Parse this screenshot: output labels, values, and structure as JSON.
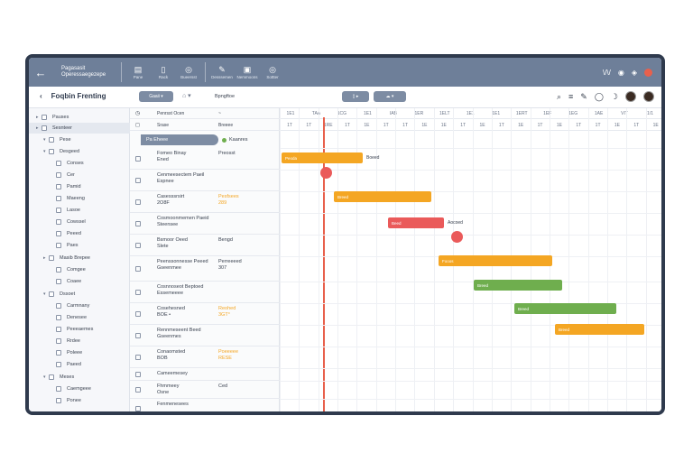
{
  "titlebar": {
    "doc_title": "Pagasasit\nOperessaegezepe",
    "buttons": [
      {
        "icon": "▤",
        "label": "Pane"
      },
      {
        "icon": "▯",
        "label": "Rack"
      },
      {
        "icon": "◎",
        "label": "Bueersst"
      },
      {
        "icon": "✎",
        "label": "Desssemen"
      },
      {
        "icon": "▣",
        "label": "Nemmoons"
      },
      {
        "icon": "◎",
        "label": "Sottter"
      }
    ],
    "right_text": "\\/\\/"
  },
  "toolbar": {
    "page_title": "Foqbin Frenting",
    "view_label": "Gaaii ▾",
    "filter_label": "Bpngftoe"
  },
  "sidebar": {
    "items": [
      {
        "label": "Pauses",
        "level": 0,
        "arrow": "▸"
      },
      {
        "label": "Sesnteer",
        "level": 0,
        "arrow": "▸",
        "selected": true
      },
      {
        "label": "Pese",
        "level": 1,
        "arrow": "▾"
      },
      {
        "label": "Desgeed",
        "level": 1,
        "arrow": "▾"
      },
      {
        "label": "Conses",
        "level": 2
      },
      {
        "label": "Cer",
        "level": 2
      },
      {
        "label": "Pamid",
        "level": 2
      },
      {
        "label": "Maeeng",
        "level": 2
      },
      {
        "label": "Lasoe",
        "level": 2
      },
      {
        "label": "Cowssel",
        "level": 2
      },
      {
        "label": "Peeed",
        "level": 2
      },
      {
        "label": "Paes",
        "level": 2
      },
      {
        "label": "Masib Brepee",
        "level": 1,
        "arrow": "▸"
      },
      {
        "label": "Comgee",
        "level": 2
      },
      {
        "label": "Coaee",
        "level": 2
      },
      {
        "label": "Dssoet",
        "level": 1,
        "arrow": "▾"
      },
      {
        "label": "Carmnany",
        "level": 2
      },
      {
        "label": "Denesee",
        "level": 2
      },
      {
        "label": "Peeeaemes",
        "level": 2
      },
      {
        "label": "Rrdee",
        "level": 2
      },
      {
        "label": "Poleee",
        "level": 2
      },
      {
        "label": "Paeed",
        "level": 2
      },
      {
        "label": "Meses",
        "level": 1,
        "arrow": "▾"
      },
      {
        "label": "Caemgeee",
        "level": 2
      },
      {
        "label": "Ponee",
        "level": 2
      }
    ]
  },
  "grid": {
    "header1": {
      "a": "Penrsst Ocen",
      "b": "~"
    },
    "header2": {
      "a": "Srase",
      "b": "Breeee"
    },
    "group_label": "Pa Eheee",
    "group_badge": "Kaanres",
    "rows": [
      {
        "name": "Fomeo Binay\nEned",
        "value": "Preosst",
        "orange": false
      },
      {
        "name": "Cenmeesectem Paeil\nEspnee",
        "value": "",
        "orange": false
      },
      {
        "name": "Casesssrsirt\n2O8F",
        "value": "Pesfsees\n289",
        "orange": true
      },
      {
        "name": "Cosmoonmemen Paeid\nSteensee",
        "value": "",
        "orange": false
      },
      {
        "name": "Bsmoor Oeed\nSlete",
        "value": "Bengd",
        "orange": false
      },
      {
        "name": "Peenssonnesse Peeed\nGseenmee",
        "value": "Perreeeed\n307",
        "orange": false
      },
      {
        "name": "Cosnnoseot Beptoed\nEssemeeee",
        "value": "",
        "orange": false
      },
      {
        "name": "Cosehesned\nBOE •",
        "value": "Reohed\n3GT°",
        "orange": true
      },
      {
        "name": "Rennmeseent Beed\nGseenmes",
        "value": "",
        "orange": false
      },
      {
        "name": "Conaomsted\nBOB",
        "value": "Poeeeee\nRESE",
        "orange": true
      },
      {
        "name": "Cameemesey",
        "value": "",
        "orange": false
      },
      {
        "name": "Fhmmeey\nOsne",
        "value": "Ced",
        "orange": false
      },
      {
        "name": "Fenmenesees",
        "value": "",
        "orange": false
      }
    ]
  },
  "chart": {
    "timeline_top": [
      "1E1",
      "TAA",
      "1CG",
      "1E1",
      "IAB",
      "1ER",
      "1ELT",
      "1E1",
      "1E1",
      "1ERT",
      "1EF",
      "1EG",
      "1AE",
      "VIT",
      "1/1"
    ],
    "timeline_bottom": [
      "1T",
      "1T",
      "1RE",
      "1T",
      "1E",
      "1T",
      "1T",
      "1E",
      "1E",
      "1T",
      "1E",
      "1T",
      "1E",
      "1T",
      "1E",
      "1T",
      "1T",
      "1E",
      "1T",
      "1E"
    ],
    "bars": [
      {
        "label": "Peoda",
        "note": "Boeed",
        "color": "#f4a623"
      },
      {
        "label": "Breed",
        "note": "",
        "color": "#f4a623"
      },
      {
        "label": "Beed",
        "note": "Aocoed",
        "color": "#ea5a5a"
      },
      {
        "label": "Fooos",
        "note": "",
        "color": "#f4a623"
      },
      {
        "label": "Breed",
        "note": "",
        "color": "#6fae4e"
      },
      {
        "label": "Breed",
        "note": "",
        "color": "#6fae4e"
      },
      {
        "label": "Breed",
        "note": "",
        "color": "#f4a623"
      }
    ],
    "footer": "◦ ◦◦ ◦◦"
  },
  "colors": {
    "titlebar": "#6e7f99",
    "frame": "#2f3a4d",
    "accent_orange": "#f4a623",
    "accent_red": "#ea5a5a",
    "accent_green": "#6fae4e",
    "today_line": "#e8604c"
  }
}
